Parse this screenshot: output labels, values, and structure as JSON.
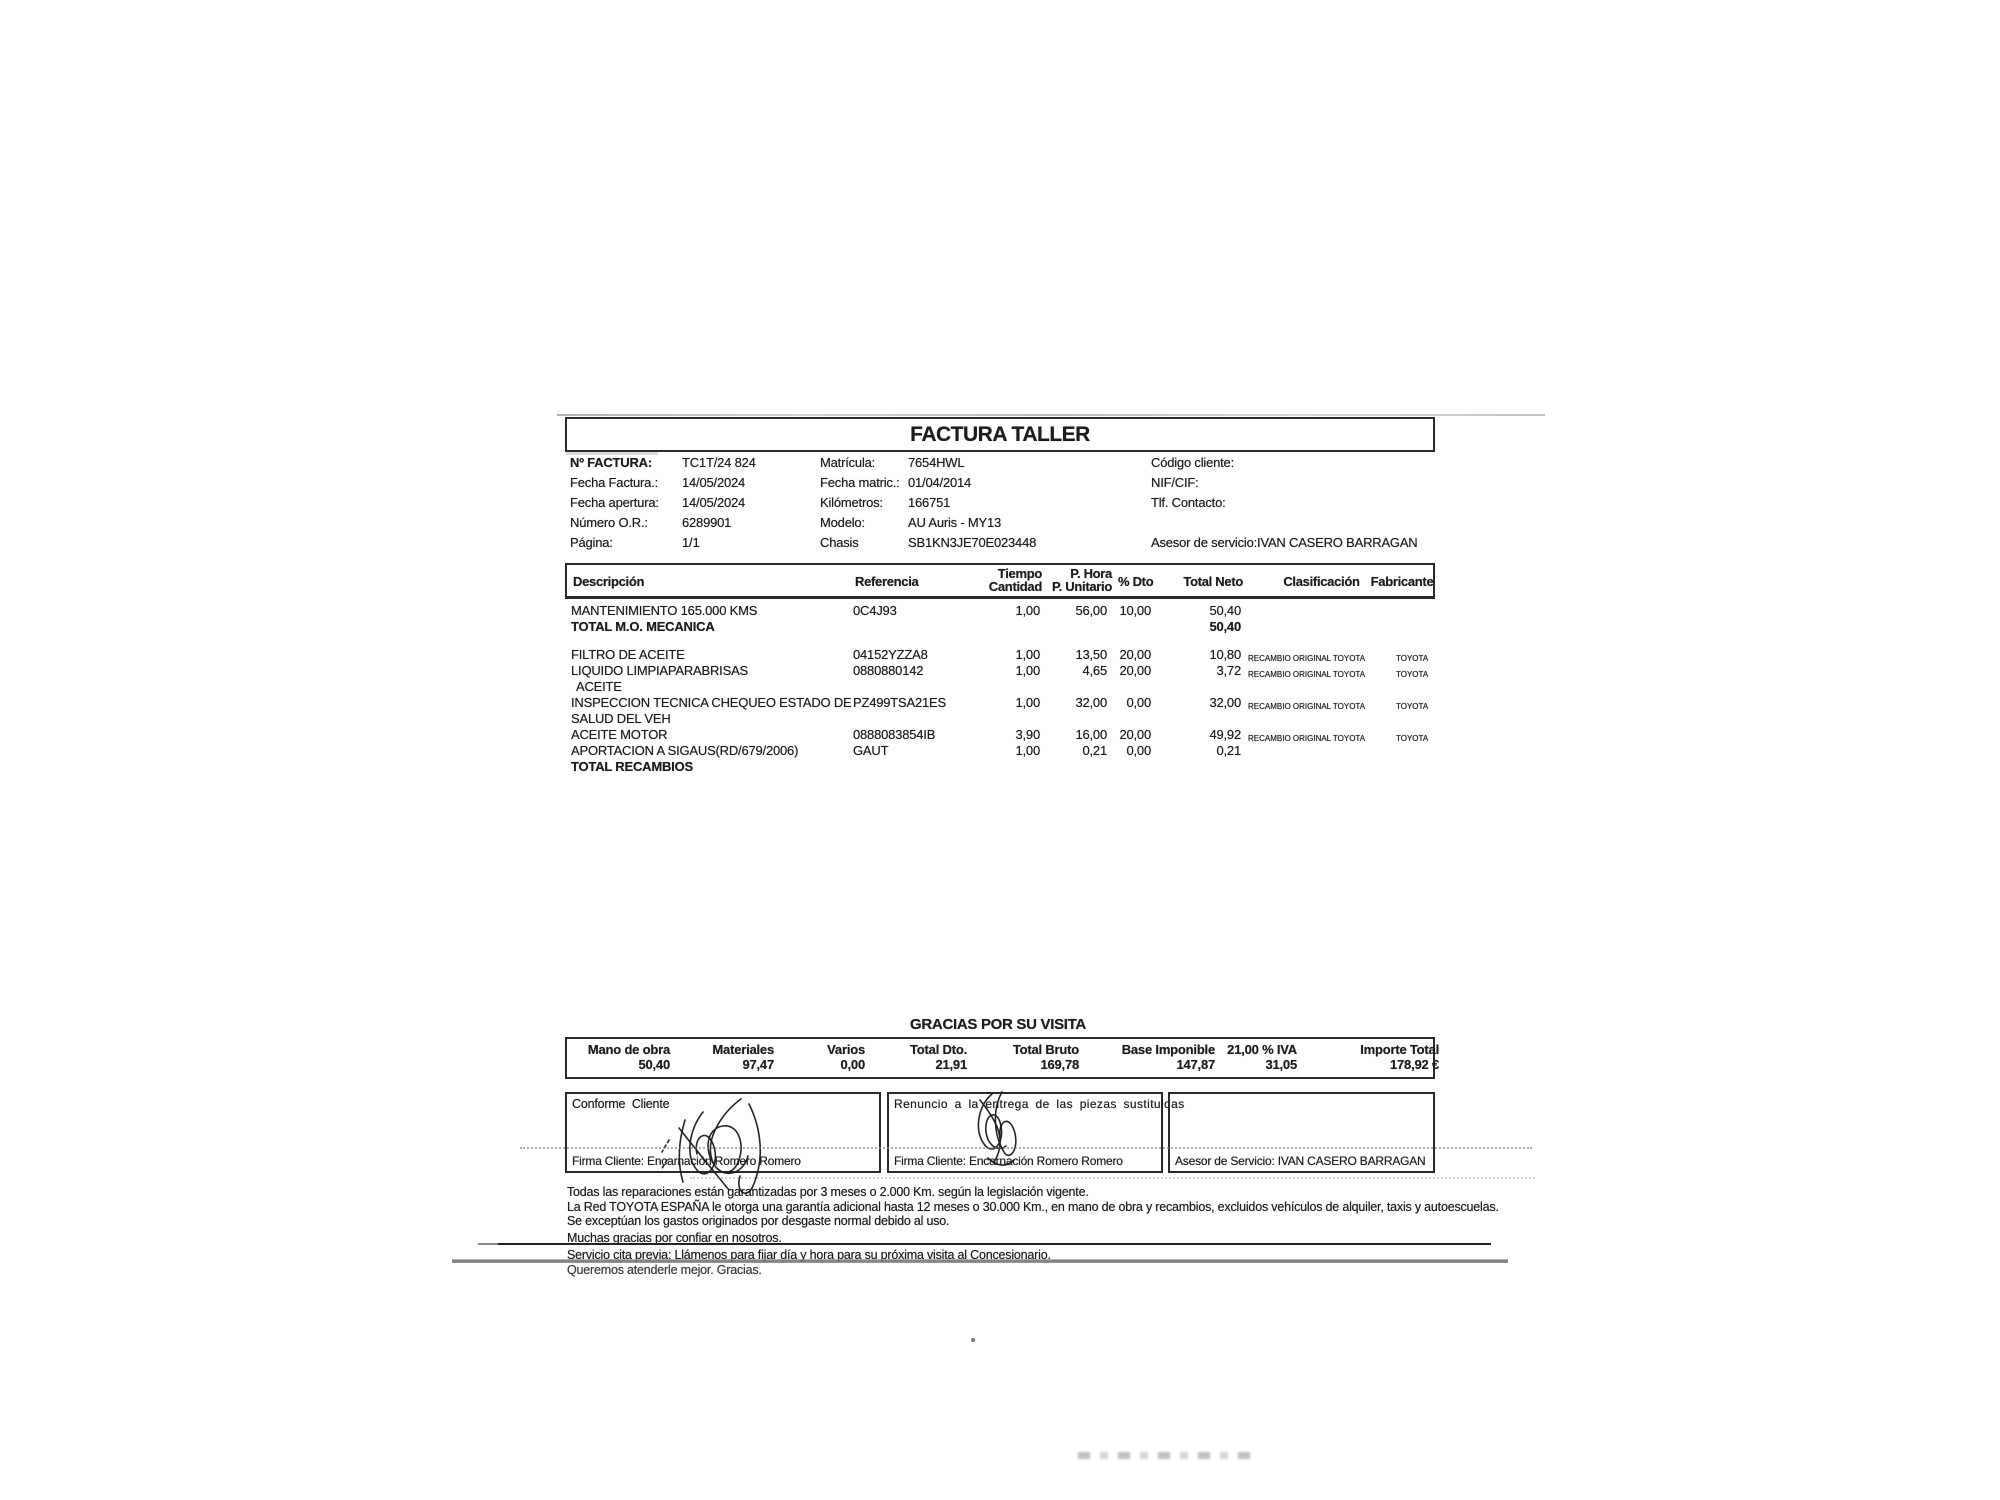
{
  "invoice": {
    "title": "FACTURA TALLER",
    "header": {
      "col1": [
        {
          "label": "Nº FACTURA:",
          "value": "TC1T/24 824"
        },
        {
          "label": "Fecha Factura.:",
          "value": "14/05/2024"
        },
        {
          "label": "Fecha apertura:",
          "value": "14/05/2024"
        },
        {
          "label": "Número O.R.:",
          "value": "6289901"
        },
        {
          "label": "Página:",
          "value": "1/1"
        }
      ],
      "col2": [
        {
          "label": "Matrícula:",
          "value": "7654HWL"
        },
        {
          "label": "Fecha matric.:",
          "value": "01/04/2014"
        },
        {
          "label": "Kilómetros:",
          "value": "166751"
        },
        {
          "label": "Modelo:",
          "value": "AU Auris - MY13"
        },
        {
          "label": "Chasis",
          "value": "SB1KN3JE70E023448"
        }
      ],
      "col3": [
        {
          "label": "Código cliente:",
          "value": ""
        },
        {
          "label": "NIF/CIF:",
          "value": ""
        },
        {
          "label": "Tlf. Contacto:",
          "value": ""
        },
        {
          "label": "",
          "value": ""
        },
        {
          "label": "Asesor de servicio:",
          "value": "IVAN CASERO BARRAGAN"
        }
      ]
    },
    "table": {
      "columns": {
        "descripcion": "Descripción",
        "referencia": "Referencia",
        "tiempo_l1": "Tiempo",
        "tiempo_l2": "Cantidad",
        "phora_l1": "P. Hora",
        "phora_l2": "P. Unitario",
        "dto": "% Dto",
        "total": "Total Neto",
        "clasificacion": "Clasificación",
        "fabricante": "Fabricante"
      },
      "rows": [
        {
          "desc": [
            "MANTENIMIENTO 165.000 KMS"
          ],
          "ref": "0C4J93",
          "qty": "1,00",
          "price": "56,00",
          "dto": "10,00",
          "total": "50,40",
          "clasif": "",
          "fab": ""
        },
        {
          "desc": [
            "TOTAL M.O. MECANICA"
          ],
          "ref": "",
          "qty": "",
          "price": "",
          "dto": "",
          "total": "50,40",
          "clasif": "",
          "fab": "",
          "bold": true
        },
        {
          "desc": [
            "FILTRO DE ACEITE"
          ],
          "ref": "04152YZZA8",
          "qty": "1,00",
          "price": "13,50",
          "dto": "20,00",
          "total": "10,80",
          "clasif": "RECAMBIO ORIGINAL TOYOTA",
          "fab": "TOYOTA",
          "gap": true
        },
        {
          "desc": [
            "LIQUIDO LIMPIAPARABRISAS"
          ],
          "ref": "0880880142",
          "qty": "1,00",
          "price": "4,65",
          "dto": "20,00",
          "total": "3,72",
          "clasif": "RECAMBIO ORIGINAL TOYOTA",
          "fab": "TOYOTA"
        },
        {
          "desc": [
            "ACEITE"
          ],
          "ref": "",
          "qty": "",
          "price": "",
          "dto": "",
          "total": "",
          "clasif": "",
          "fab": "",
          "indent": true
        },
        {
          "desc": [
            "INSPECCION TECNICA CHEQUEO ESTADO DE",
            "SALUD DEL VEH"
          ],
          "ref": "PZ499TSA21ES",
          "qty": "1,00",
          "price": "32,00",
          "dto": "0,00",
          "total": "32,00",
          "clasif": "RECAMBIO ORIGINAL TOYOTA",
          "fab": "TOYOTA"
        },
        {
          "desc": [
            "ACEITE MOTOR"
          ],
          "ref": "0888083854IB",
          "qty": "3,90",
          "price": "16,00",
          "dto": "20,00",
          "total": "49,92",
          "clasif": "RECAMBIO ORIGINAL TOYOTA",
          "fab": "TOYOTA"
        },
        {
          "desc": [
            "APORTACION A SIGAUS(RD/679/2006)"
          ],
          "ref": "GAUT",
          "qty": "1,00",
          "price": "0,21",
          "dto": "0,00",
          "total": "0,21",
          "clasif": "",
          "fab": ""
        },
        {
          "desc": [
            "TOTAL RECAMBIOS"
          ],
          "ref": "",
          "qty": "",
          "price": "",
          "dto": "",
          "total": "",
          "clasif": "",
          "fab": "",
          "bold": true
        }
      ]
    },
    "totals": {
      "title": "GRACIAS POR SU VISITA",
      "items": [
        {
          "label": "Mano de obra",
          "value": "50,40"
        },
        {
          "label": "Materiales",
          "value": "97,47"
        },
        {
          "label": "Varios",
          "value": "0,00"
        },
        {
          "label": "Total Dto.",
          "value": "21,91"
        },
        {
          "label": "Total Bruto",
          "value": "169,78"
        },
        {
          "label": "Base Imponible",
          "value": "147,87"
        },
        {
          "label": "21,00 % IVA",
          "value": "31,05"
        },
        {
          "label": "Importe Total",
          "value": "178,92 €"
        }
      ]
    },
    "signatures": {
      "box1_top": "Conforme  Cliente",
      "box1_bottom": "Firma Cliente: Encarnación Romero Romero",
      "box2_top": "Renuncio a la entrega de las piezas sustituidas",
      "box2_bottom": "Firma Cliente: Encarnación Romero Romero",
      "box3_bottom": "Asesor de Servicio: IVAN CASERO BARRAGAN"
    },
    "footer": {
      "lines": [
        "Todas las reparaciones están garantizadas por 3 meses o 2.000 Km. según la legislación vigente.",
        "La Red TOYOTA ESPAÑA le otorga una garantía adicional hasta 12 meses o 30.000 Km., en mano de obra y recambios, excluidos vehículos de alquiler, taxis y autoescuelas.",
        "Se exceptúan los gastos originados por desgaste normal debido al uso."
      ],
      "thanks": "Muchas gracias por confiar en nosotros.",
      "cita": "Servicio cita previa: Llámenos para fijar día y hora para su próxima visita al Concesionario.",
      "gracias": "Queremos atenderle mejor. Gracias."
    }
  }
}
